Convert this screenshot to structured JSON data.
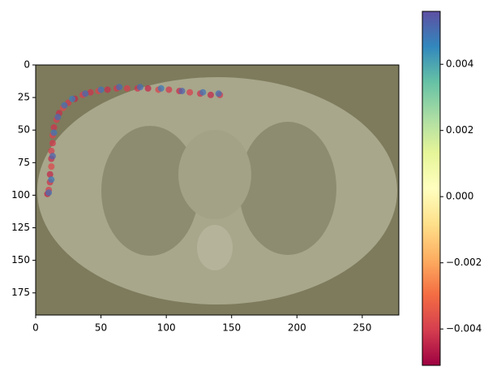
{
  "chart_data": {
    "type": "scatter",
    "x": [
      9,
      10,
      11,
      11,
      12,
      12,
      12,
      13,
      13,
      14,
      16,
      18,
      21,
      25,
      30,
      36,
      42,
      48,
      55,
      62,
      70,
      78,
      86,
      94,
      102,
      110,
      118,
      126,
      134,
      141,
      10,
      12,
      13,
      14,
      17,
      22,
      28,
      38,
      50,
      64,
      80,
      96,
      112,
      128,
      140
    ],
    "y": [
      99,
      96,
      90,
      84,
      78,
      72,
      66,
      60,
      54,
      48,
      42,
      37,
      33,
      29,
      26,
      23,
      21,
      20,
      19,
      18,
      18,
      18,
      18,
      19,
      19,
      20,
      21,
      22,
      23,
      23,
      98,
      88,
      70,
      52,
      40,
      31,
      26,
      22,
      19,
      17,
      17,
      18,
      20,
      21,
      22
    ],
    "c": [
      -0.0045,
      -0.004,
      -0.0042,
      -0.0044,
      -0.0038,
      -0.0043,
      -0.004,
      -0.0041,
      -0.0039,
      -0.0042,
      -0.004,
      -0.0043,
      -0.0038,
      -0.0041,
      -0.0044,
      -0.004,
      -0.0042,
      -0.0039,
      -0.0043,
      -0.0041,
      -0.004,
      -0.0042,
      -0.0044,
      -0.0039,
      -0.0041,
      -0.0043,
      -0.004,
      -0.0042,
      -0.0044,
      -0.0041,
      0.005,
      0.0048,
      0.0052,
      0.0049,
      0.0051,
      0.005,
      0.0047,
      0.0052,
      0.0049,
      0.0051,
      0.005,
      0.0048,
      0.0052,
      0.0049,
      0.005
    ],
    "xlim": [
      0,
      278
    ],
    "ylim": [
      192,
      0
    ],
    "xticks": [
      0,
      50,
      100,
      150,
      200,
      250
    ],
    "yticks": [
      0,
      25,
      50,
      75,
      100,
      125,
      150,
      175
    ],
    "clim": [
      -0.0051,
      0.0056
    ],
    "cticks": [
      0.004,
      0.002,
      {
        "value": 0,
        "label": "0.000"
      },
      {
        "value": -0.002,
        "label": "−0.002"
      },
      {
        "value": -0.004,
        "label": "−0.004"
      }
    ],
    "colormap": "Spectral"
  }
}
